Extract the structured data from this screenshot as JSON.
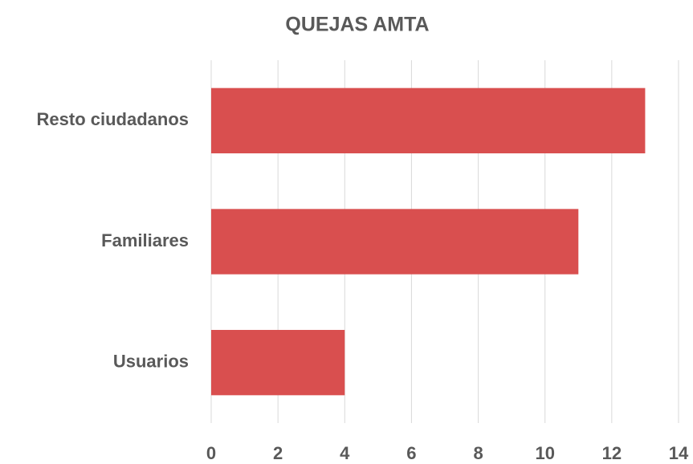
{
  "chart_data": {
    "type": "barh",
    "title": "QUEJAS AMTA",
    "categories": [
      "Resto ciudadanos",
      "Familiares",
      "Usuarios"
    ],
    "values": [
      13,
      11,
      4
    ],
    "color": "#d94f4f",
    "xlim": [
      0,
      14
    ],
    "xticks": [
      0,
      2,
      4,
      6,
      8,
      10,
      12,
      14
    ],
    "grid": true
  }
}
